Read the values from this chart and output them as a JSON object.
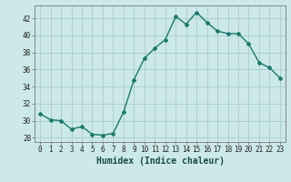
{
  "x": [
    0,
    1,
    2,
    3,
    4,
    5,
    6,
    7,
    8,
    9,
    10,
    11,
    12,
    13,
    14,
    15,
    16,
    17,
    18,
    19,
    20,
    21,
    22,
    23
  ],
  "y": [
    30.8,
    30.1,
    30.0,
    29.0,
    29.3,
    28.4,
    28.3,
    28.5,
    31.0,
    34.8,
    37.3,
    38.5,
    39.5,
    42.2,
    41.3,
    42.7,
    41.5,
    40.5,
    40.2,
    40.2,
    39.0,
    36.8,
    36.2,
    35.0
  ],
  "title": "",
  "xlabel": "Humidex (Indice chaleur)",
  "ylabel": "",
  "line_color": "#1a7a6e",
  "marker": "D",
  "marker_size": 2.0,
  "bg_color": "#cce8e8",
  "grid_color": "#aacccc",
  "ylim": [
    27.5,
    43.5
  ],
  "xlim": [
    -0.5,
    23.5
  ],
  "yticks": [
    28,
    30,
    32,
    34,
    36,
    38,
    40,
    42
  ],
  "xticks": [
    0,
    1,
    2,
    3,
    4,
    5,
    6,
    7,
    8,
    9,
    10,
    11,
    12,
    13,
    14,
    15,
    16,
    17,
    18,
    19,
    20,
    21,
    22,
    23
  ],
  "tick_fontsize": 5.5,
  "xlabel_fontsize": 7.0,
  "line_width": 1.0
}
